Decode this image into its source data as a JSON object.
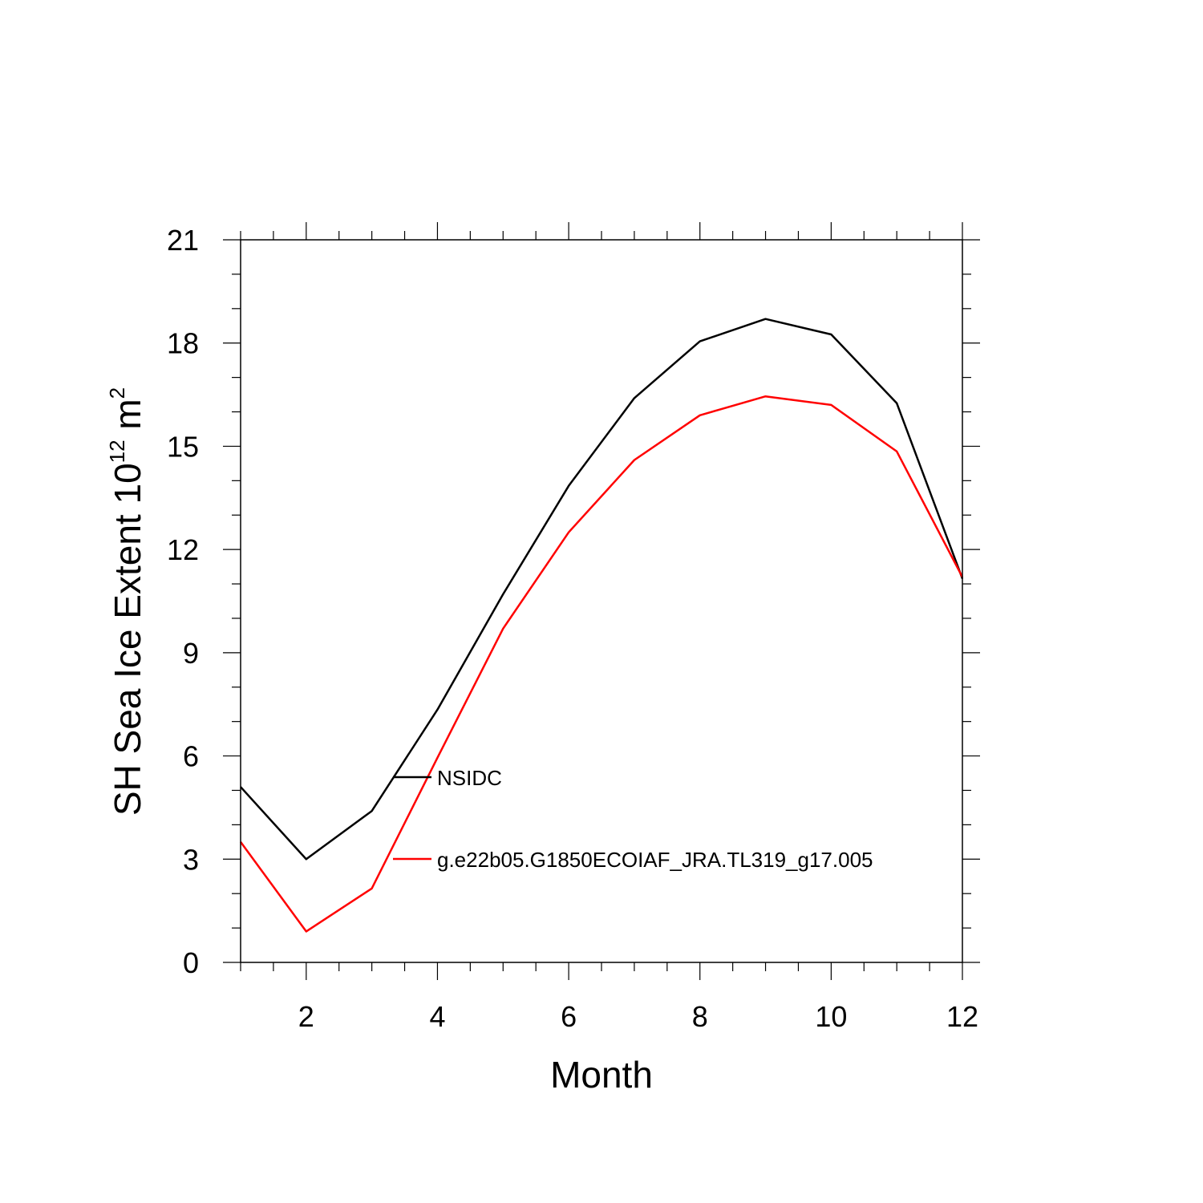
{
  "chart_data": {
    "type": "line",
    "xlabel": "Month",
    "ylabel": {
      "prefix": "SH Sea Ice Extent 10",
      "sup1": "12",
      "mid": " m",
      "sup2": "2"
    },
    "xlim": [
      1,
      12
    ],
    "ylim": [
      0,
      21
    ],
    "xticks": [
      2,
      4,
      6,
      8,
      10,
      12
    ],
    "yticks": [
      0,
      3,
      6,
      9,
      12,
      15,
      18,
      21
    ],
    "x": [
      1,
      2,
      3,
      4,
      5,
      6,
      7,
      8,
      9,
      10,
      11,
      12
    ],
    "series": [
      {
        "name": "NSIDC",
        "color": "#000000",
        "values": [
          5.1,
          3.0,
          4.4,
          7.35,
          10.7,
          13.85,
          16.4,
          18.05,
          18.7,
          18.25,
          16.25,
          11.15
        ]
      },
      {
        "name": "g.e22b05.G1850ECOIAF_JRA.TL319_g17.005",
        "color": "#ff0000",
        "values": [
          3.5,
          0.9,
          2.15,
          5.95,
          9.7,
          12.5,
          14.6,
          15.9,
          16.45,
          16.2,
          14.85,
          11.2
        ]
      }
    ],
    "legend_position": "inside-lower-center",
    "grid": false
  }
}
